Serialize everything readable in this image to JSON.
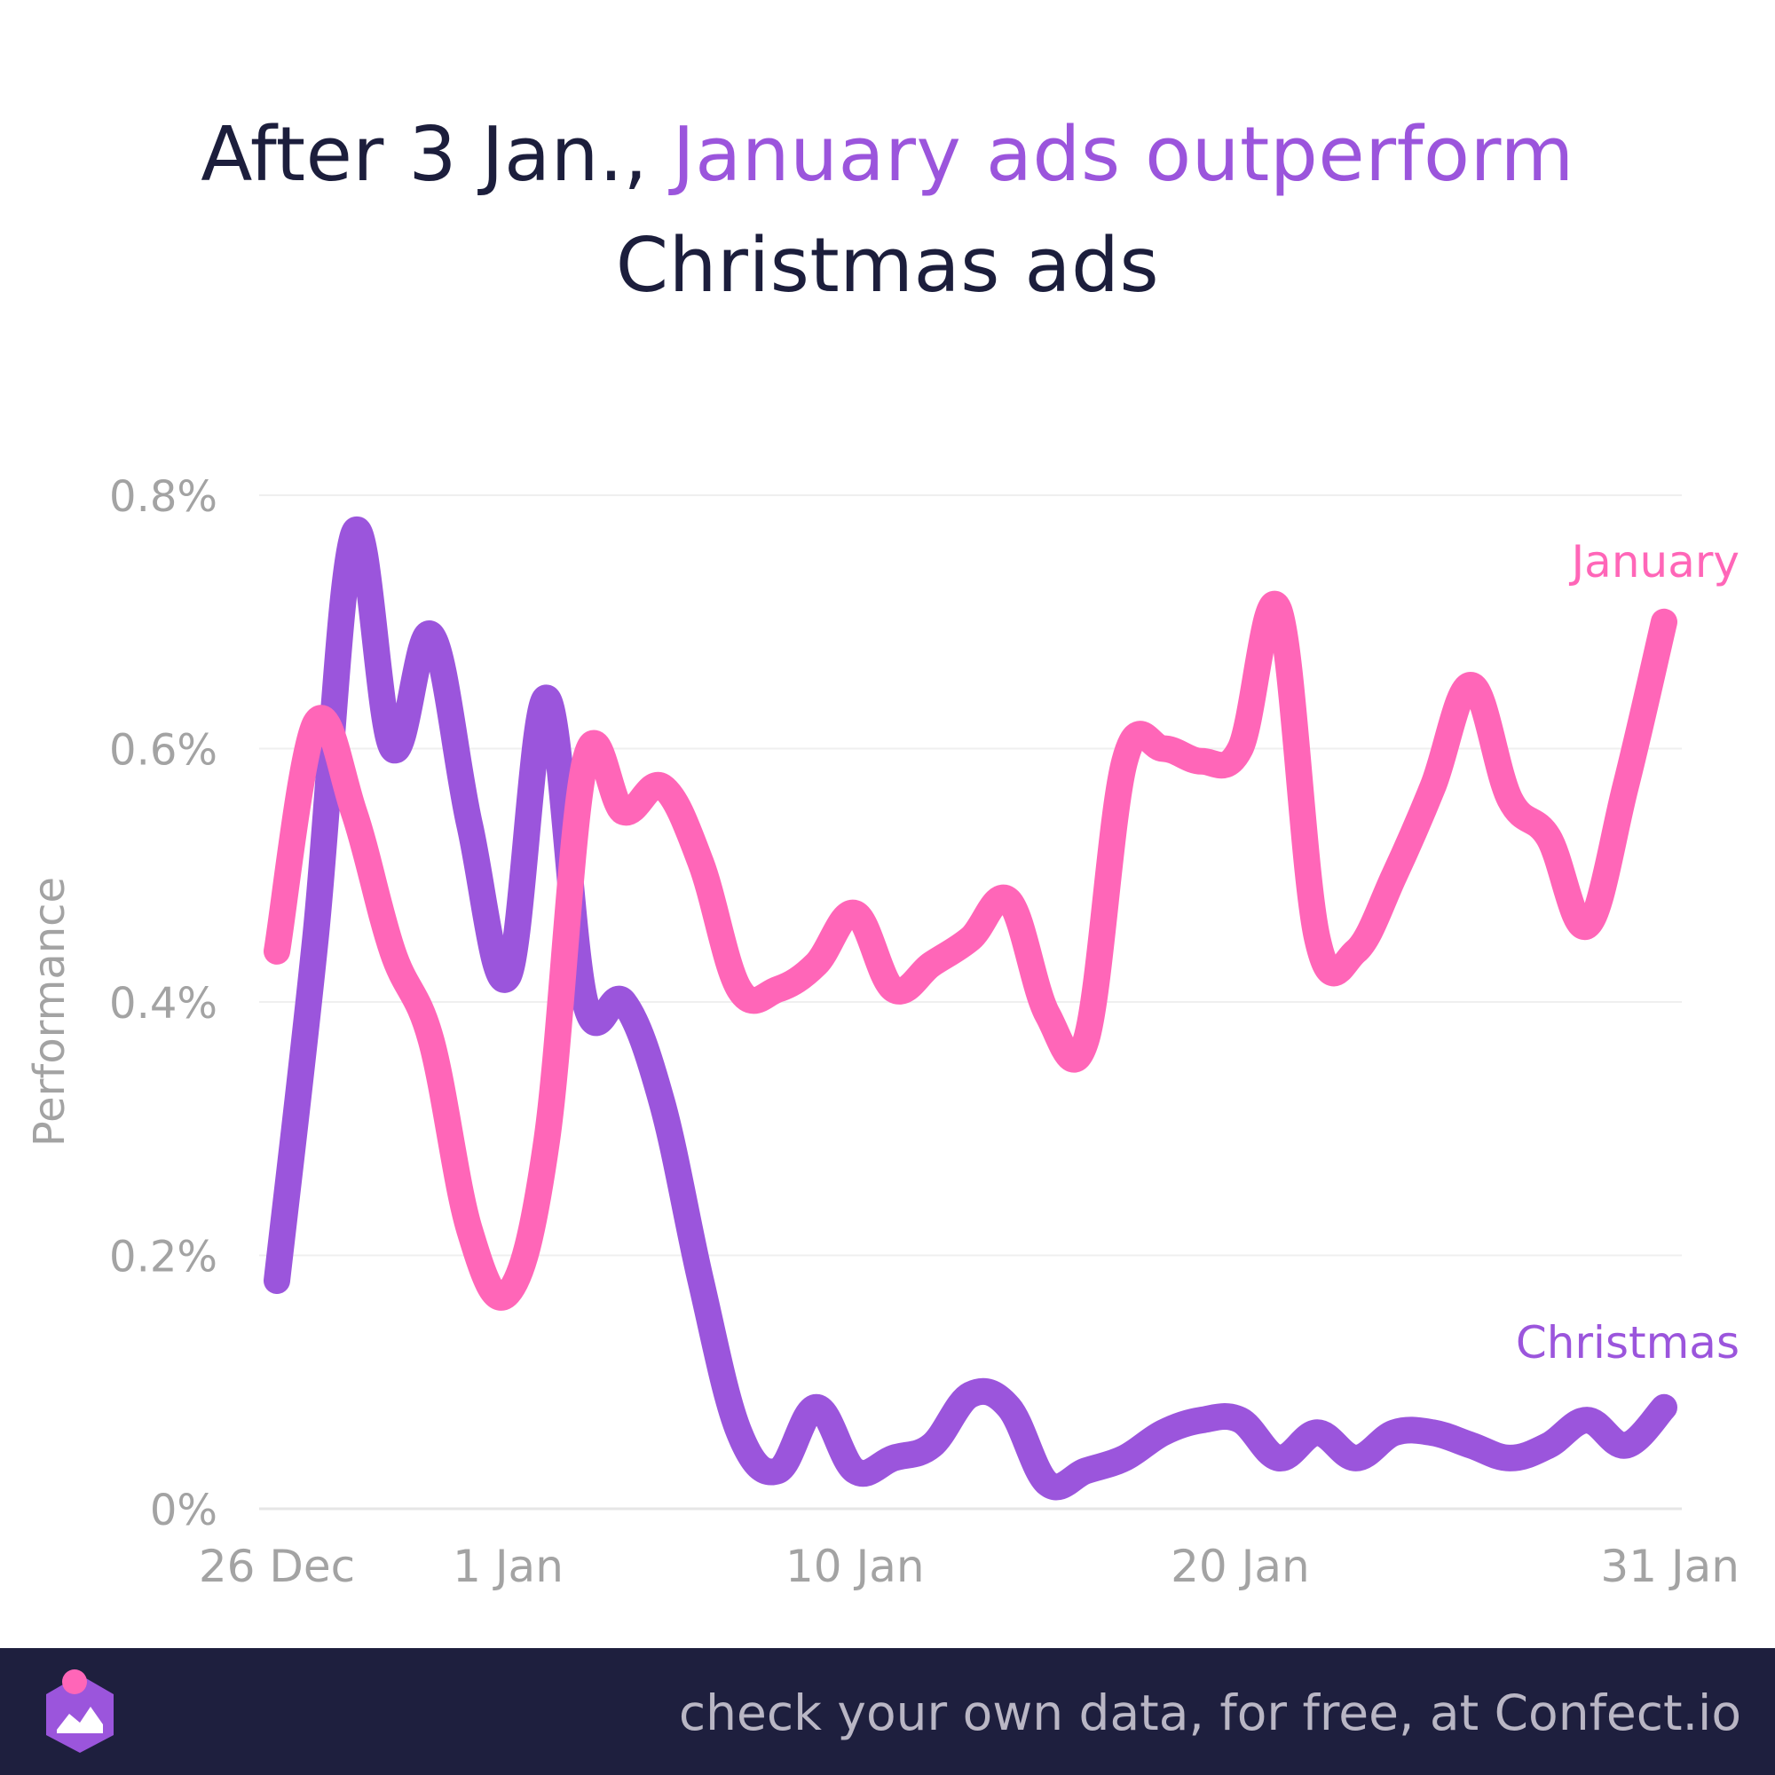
{
  "title": {
    "part1": "After 3 Jan., ",
    "accent": "January ads outperform",
    "part2": "Christmas ads"
  },
  "footer": {
    "text": "check your own data, for free, at Confect.io"
  },
  "colors": {
    "january": "#ff66b8",
    "christmas": "#9b55dc",
    "title": "#1c1e3c",
    "axis_text": "#a3a3a3",
    "grid": "#efefef",
    "footer_bg": "#1e1f3e"
  },
  "chart_data": {
    "type": "line",
    "ylabel": "Performance",
    "ylim": [
      0,
      0.8
    ],
    "yticks": [
      0,
      0.2,
      0.4,
      0.6,
      0.8
    ],
    "ytick_labels": [
      "0%",
      "0.2%",
      "0.4%",
      "0.6%",
      "0.8%"
    ],
    "xlim": [
      "2023-12-26",
      "2024-01-31"
    ],
    "xticks": [
      "2023-12-26",
      "2024-01-01",
      "2024-01-10",
      "2024-01-20",
      "2024-01-31"
    ],
    "xtick_labels": [
      "26 Dec",
      "1 Jan",
      "10 Jan",
      "20 Jan",
      "31 Jan"
    ],
    "grid": true,
    "x": [
      "2023-12-26",
      "2023-12-27",
      "2023-12-28",
      "2023-12-29",
      "2023-12-30",
      "2023-12-31",
      "2024-01-01",
      "2024-01-02",
      "2024-01-03",
      "2024-01-04",
      "2024-01-05",
      "2024-01-06",
      "2024-01-07",
      "2024-01-08",
      "2024-01-09",
      "2024-01-10",
      "2024-01-11",
      "2024-01-12",
      "2024-01-13",
      "2024-01-14",
      "2024-01-15",
      "2024-01-16",
      "2024-01-17",
      "2024-01-18",
      "2024-01-19",
      "2024-01-20",
      "2024-01-21",
      "2024-01-22",
      "2024-01-23",
      "2024-01-24",
      "2024-01-25",
      "2024-01-26",
      "2024-01-27",
      "2024-01-28",
      "2024-01-29",
      "2024-01-30",
      "2024-01-31"
    ],
    "series": [
      {
        "name": "January",
        "values": [
          0.44,
          0.62,
          0.55,
          0.44,
          0.37,
          0.22,
          0.17,
          0.29,
          0.59,
          0.55,
          0.57,
          0.51,
          0.41,
          0.41,
          0.43,
          0.47,
          0.41,
          0.43,
          0.45,
          0.48,
          0.39,
          0.37,
          0.59,
          0.6,
          0.59,
          0.6,
          0.71,
          0.45,
          0.44,
          0.5,
          0.57,
          0.65,
          0.56,
          0.53,
          0.46,
          0.57,
          0.7
        ]
      },
      {
        "name": "Christmas",
        "values": [
          0.18,
          0.45,
          0.77,
          0.6,
          0.69,
          0.54,
          0.42,
          0.64,
          0.4,
          0.4,
          0.32,
          0.18,
          0.06,
          0.03,
          0.08,
          0.03,
          0.04,
          0.05,
          0.09,
          0.08,
          0.02,
          0.03,
          0.04,
          0.06,
          0.07,
          0.07,
          0.04,
          0.06,
          0.04,
          0.06,
          0.06,
          0.05,
          0.04,
          0.05,
          0.07,
          0.05,
          0.08
        ]
      }
    ]
  }
}
